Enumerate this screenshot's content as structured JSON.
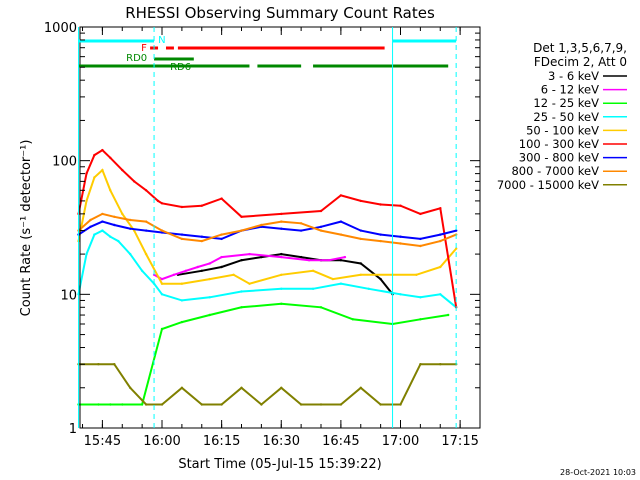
{
  "chart_data": {
    "type": "line",
    "title": "RHESSI Observing Summary Count Rates",
    "xlabel": "Start Time (05-Jul-15 15:39:22)",
    "ylabel": "Count Rate (s⁻¹ detector⁻¹)",
    "y_scale": "log",
    "ylim": [
      1,
      1000
    ],
    "xlim": [
      "15:39:22",
      "17:20:00"
    ],
    "x_ticks": [
      "15:45",
      "16:00",
      "16:15",
      "16:30",
      "16:45",
      "17:00",
      "17:15"
    ],
    "y_ticks": [
      "1",
      "10",
      "100",
      "1000"
    ],
    "grid": false,
    "legend_header": [
      "Det 1,3,5,6,7,9,",
      "FDecim 2, Att 0"
    ],
    "legend_position": "right",
    "timestamp": "28-Oct-2021 10:03",
    "series": [
      {
        "name": "3 - 6 keV",
        "color": "#000000",
        "x": [
          "16:04",
          "16:10",
          "16:15",
          "16:20",
          "16:25",
          "16:30",
          "16:35",
          "16:40",
          "16:45",
          "16:50",
          "16:55",
          "16:58"
        ],
        "values": [
          14,
          15,
          16,
          18,
          19,
          20,
          19,
          18,
          18,
          17,
          13,
          10
        ]
      },
      {
        "name": "6 - 12 keV",
        "color": "#ff00ff",
        "x": [
          "15:58",
          "16:00",
          "16:03",
          "16:06",
          "16:09",
          "16:12",
          "16:15",
          "16:22",
          "16:30",
          "16:37",
          "16:42",
          "16:46"
        ],
        "values": [
          14,
          13,
          14,
          15,
          16,
          17,
          19,
          20,
          19,
          18,
          18,
          19
        ]
      },
      {
        "name": "12 - 25 keV",
        "color": "#00ff00",
        "x": [
          "15:39",
          "15:44",
          "15:47",
          "15:50",
          "15:55",
          "16:00",
          "16:05",
          "16:12",
          "16:20",
          "16:30",
          "16:40",
          "16:48",
          "16:58",
          "17:05",
          "17:12"
        ],
        "values": [
          1.5,
          1.5,
          1.5,
          1.5,
          1.5,
          5.5,
          6.2,
          7,
          8,
          8.5,
          8,
          6.5,
          6,
          6.5,
          7
        ]
      },
      {
        "name": "25 - 50 keV",
        "color": "#00ffff",
        "x": [
          "15:39",
          "15:41",
          "15:43",
          "15:45",
          "15:47",
          "15:49",
          "15:52",
          "15:55",
          "15:58",
          "16:00",
          "16:05",
          "16:12",
          "16:20",
          "16:30",
          "16:38",
          "16:45",
          "16:52",
          "17:00",
          "17:05",
          "17:10",
          "17:14"
        ],
        "values": [
          10,
          20,
          28,
          30,
          27,
          25,
          20,
          15,
          12,
          10,
          9,
          9.5,
          10.5,
          11,
          11,
          12,
          11,
          10,
          9.5,
          10,
          8
        ]
      },
      {
        "name": "50 - 100 keV",
        "color": "#ffcc00",
        "x": [
          "15:39",
          "15:41",
          "15:43",
          "15:45",
          "15:47",
          "15:50",
          "15:53",
          "15:56",
          "16:00",
          "16:05",
          "16:12",
          "16:18",
          "16:22",
          "16:30",
          "16:38",
          "16:43",
          "16:50",
          "16:58",
          "17:04",
          "17:10",
          "17:14"
        ],
        "values": [
          25,
          50,
          75,
          85,
          60,
          40,
          30,
          20,
          12,
          12,
          13,
          14,
          12,
          14,
          15,
          13,
          14,
          14,
          14,
          16,
          22
        ]
      },
      {
        "name": "100 - 300 keV",
        "color": "#ff0000",
        "x": [
          "15:39",
          "15:41",
          "15:43",
          "15:45",
          "15:47",
          "15:50",
          "15:53",
          "15:56",
          "15:59",
          "16:00",
          "16:05",
          "16:10",
          "16:15",
          "16:20",
          "16:30",
          "16:40",
          "16:45",
          "16:50",
          "16:55",
          "17:00",
          "17:05",
          "17:10",
          "17:14"
        ],
        "values": [
          40,
          80,
          110,
          120,
          105,
          85,
          70,
          60,
          50,
          48,
          45,
          46,
          52,
          38,
          40,
          42,
          55,
          50,
          47,
          46,
          40,
          44,
          8
        ]
      },
      {
        "name": "300 - 800 keV",
        "color": "#0000ff",
        "x": [
          "15:39",
          "15:42",
          "15:45",
          "15:48",
          "15:52",
          "15:56",
          "16:00",
          "16:05",
          "16:10",
          "16:15",
          "16:20",
          "16:25",
          "16:30",
          "16:35",
          "16:40",
          "16:45",
          "16:50",
          "16:55",
          "17:00",
          "17:05",
          "17:10",
          "17:14"
        ],
        "values": [
          28,
          32,
          35,
          33,
          31,
          30,
          29,
          28,
          27,
          26,
          30,
          32,
          31,
          30,
          32,
          35,
          30,
          28,
          27,
          26,
          28,
          30
        ]
      },
      {
        "name": "800 - 7000 keV",
        "color": "#ff8800",
        "x": [
          "15:39",
          "15:42",
          "15:45",
          "15:48",
          "15:52",
          "15:56",
          "16:00",
          "16:05",
          "16:10",
          "16:15",
          "16:20",
          "16:25",
          "16:30",
          "16:35",
          "16:40",
          "16:45",
          "16:50",
          "16:55",
          "17:00",
          "17:05",
          "17:10",
          "17:14"
        ],
        "values": [
          30,
          36,
          40,
          38,
          36,
          35,
          30,
          26,
          25,
          28,
          30,
          33,
          35,
          34,
          30,
          28,
          26,
          25,
          24,
          23,
          25,
          28
        ]
      },
      {
        "name": "7000 - 15000 keV",
        "color": "#808000",
        "x": [
          "15:39",
          "15:44",
          "15:48",
          "15:52",
          "15:56",
          "16:00",
          "16:05",
          "16:10",
          "16:15",
          "16:20",
          "16:25",
          "16:30",
          "16:35",
          "16:40",
          "16:45",
          "16:50",
          "16:55",
          "17:00",
          "17:05",
          "17:10",
          "17:14"
        ],
        "values": [
          3,
          3,
          3,
          2,
          1.5,
          1.5,
          2,
          1.5,
          1.5,
          2,
          1.5,
          2,
          1.5,
          1.5,
          1.5,
          2,
          1.5,
          1.5,
          3,
          3,
          3
        ]
      }
    ],
    "flag_bars": [
      {
        "label": "N",
        "color": "#00ffff",
        "intervals": [
          [
            "15:39",
            "15:58"
          ],
          [
            "16:58",
            "17:14"
          ]
        ]
      },
      {
        "label": "F",
        "color": "#ff0000",
        "intervals": [
          [
            "15:57",
            "15:59"
          ],
          [
            "16:01",
            "16:03"
          ],
          [
            "16:04",
            "16:56"
          ]
        ]
      },
      {
        "label": "RD0",
        "color": "#008800",
        "intervals": [
          [
            "15:58",
            "16:08"
          ]
        ]
      },
      {
        "label": "RD6",
        "color": "#008800",
        "intervals": [
          [
            "15:39",
            "16:22"
          ],
          [
            "16:24",
            "16:35"
          ],
          [
            "16:38",
            "17:12"
          ]
        ]
      }
    ],
    "vertical_lines": [
      {
        "x": "15:39",
        "style": "solid",
        "color": "#00ffff"
      },
      {
        "x": "15:58",
        "style": "dashed",
        "color": "#00ffff"
      },
      {
        "x": "16:58",
        "style": "solid",
        "color": "#00ffff"
      },
      {
        "x": "17:14",
        "style": "dashed",
        "color": "#00ffff"
      }
    ]
  }
}
